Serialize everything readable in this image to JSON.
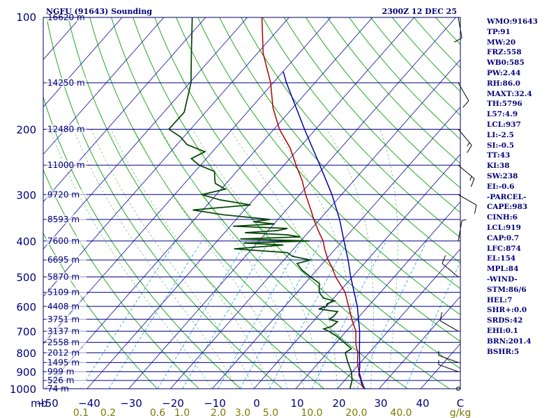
{
  "header": {
    "station": "NGFU (91643) Sounding",
    "time": "2300Z 12 DEC 25"
  },
  "indices": [
    "WMO:91643",
    "TP:91",
    "MW:20",
    "FRZ:558",
    "WB0:585",
    "PW:2.44",
    "RH:86.0",
    "MAXT:32.4",
    "TH:5796",
    "L57:4.9",
    "LCL:937",
    "LI:-2.5",
    "SI:-0.5",
    "TT:43",
    "KI:38",
    "SW:238",
    "EI:-0.6",
    "-PARCEL-",
    "CAPE:983",
    "CINH:6",
    "LCL:919",
    "CAP:0.7",
    "LFC:874",
    "EL:154",
    "MPL:84",
    "-WIND-",
    "STM:86/6",
    "HEL:7",
    "SHR+:0.0",
    "SRDS:42",
    "EHI:0.1",
    "BRN:201.4",
    "BSHR:5"
  ],
  "chart_data": {
    "type": "line",
    "chart_kind": "skew-T log-P sounding",
    "pressure_unit": "mb",
    "temperature_unit": "C",
    "mixing_ratio_unit": "g/kg",
    "pressure_range": [
      1000,
      100
    ],
    "temperature_range": [
      -50,
      50
    ],
    "pressure_labels": [
      {
        "p": 100,
        "label": "100"
      },
      {
        "p": 200,
        "label": "200"
      },
      {
        "p": 300,
        "label": "300"
      },
      {
        "p": 400,
        "label": "400"
      },
      {
        "p": 500,
        "label": "500"
      },
      {
        "p": 600,
        "label": "600"
      },
      {
        "p": 700,
        "label": "700"
      },
      {
        "p": 800,
        "label": "800"
      },
      {
        "p": 900,
        "label": "900"
      },
      {
        "p": 1000,
        "label": "1000"
      }
    ],
    "height_levels": [
      {
        "p": 100,
        "label": "16620 m"
      },
      {
        "p": 150,
        "label": "14250 m"
      },
      {
        "p": 200,
        "label": "12480 m"
      },
      {
        "p": 250,
        "label": "11000 m"
      },
      {
        "p": 300,
        "label": "9720 m"
      },
      {
        "p": 350,
        "label": "8593 m"
      },
      {
        "p": 400,
        "label": "7600 m"
      },
      {
        "p": 450,
        "label": "6695 m"
      },
      {
        "p": 500,
        "label": "5870 m"
      },
      {
        "p": 550,
        "label": "5109 m"
      },
      {
        "p": 600,
        "label": "4408 m"
      },
      {
        "p": 650,
        "label": "3751 m"
      },
      {
        "p": 700,
        "label": "3137 m"
      },
      {
        "p": 750,
        "label": "2558 m"
      },
      {
        "p": 800,
        "label": "2012 m"
      },
      {
        "p": 850,
        "label": "1495 m"
      },
      {
        "p": 900,
        "label": "999 m"
      },
      {
        "p": 950,
        "label": "526 m"
      },
      {
        "p": 1000,
        "label": "74 m"
      }
    ],
    "x_labels": [
      "mb",
      "−50",
      "−40",
      "−30",
      "−20",
      "−10",
      "0",
      "10",
      "20",
      "30",
      "40",
      "C"
    ],
    "mixing_ratio_labels": [
      {
        "w": 0.1,
        "label": "0.1"
      },
      {
        "w": 0.2,
        "label": "0.2"
      },
      {
        "w": 0.6,
        "label": "0.6"
      },
      {
        "w": 1.0,
        "label": "1.0"
      },
      {
        "w": 2.0,
        "label": "2.0"
      },
      {
        "w": 3.0,
        "label": "3.0"
      },
      {
        "w": 5.0,
        "label": "5.0"
      },
      {
        "w": 10.0,
        "label": "10.0"
      },
      {
        "w": 20.0,
        "label": "20.0"
      },
      {
        "w": 40.0,
        "label": "40.0"
      },
      {
        "w": 0,
        "label": "g/kg"
      }
    ],
    "series": [
      {
        "color": "#b00000",
        "points": [
          [
            1000,
            26.5
          ],
          [
            980,
            25.2
          ],
          [
            950,
            23.9
          ],
          [
            925,
            22.9
          ],
          [
            900,
            21.6
          ],
          [
            850,
            19.3
          ],
          [
            800,
            17.3
          ],
          [
            760,
            15.1
          ],
          [
            700,
            12.3
          ],
          [
            650,
            8.8
          ],
          [
            600,
            5.3
          ],
          [
            550,
            1.5
          ],
          [
            500,
            -4.0
          ],
          [
            470,
            -7.0
          ],
          [
            450,
            -9.4
          ],
          [
            420,
            -12.6
          ],
          [
            400,
            -14.6
          ],
          [
            380,
            -17.3
          ],
          [
            350,
            -21.4
          ],
          [
            330,
            -24.1
          ],
          [
            300,
            -28.6
          ],
          [
            275,
            -32.4
          ],
          [
            250,
            -37.1
          ],
          [
            225,
            -42.1
          ],
          [
            200,
            -48.7
          ],
          [
            175,
            -54.8
          ],
          [
            150,
            -60.6
          ],
          [
            125,
            -68.6
          ],
          [
            100,
            -76.5
          ]
        ]
      },
      {
        "color": "#004400",
        "points": [
          [
            1000,
            23.0
          ],
          [
            950,
            21.8
          ],
          [
            900,
            19.8
          ],
          [
            850,
            17.0
          ],
          [
            800,
            14.3
          ],
          [
            780,
            14.9
          ],
          [
            750,
            11.8
          ],
          [
            720,
            8.5
          ],
          [
            700,
            5.8
          ],
          [
            690,
            4.1
          ],
          [
            680,
            5.5
          ],
          [
            660,
            5.9
          ],
          [
            650,
            3.3
          ],
          [
            640,
            3.8
          ],
          [
            620,
            3.8
          ],
          [
            610,
            -1.3
          ],
          [
            600,
            -0.1
          ],
          [
            590,
            -0.4
          ],
          [
            580,
            0.8
          ],
          [
            570,
            -2.5
          ],
          [
            550,
            -4.7
          ],
          [
            520,
            -6.6
          ],
          [
            500,
            -10.0
          ],
          [
            480,
            -13.4
          ],
          [
            460,
            -16.1
          ],
          [
            450,
            -13.6
          ],
          [
            440,
            -18.7
          ],
          [
            430,
            -20.7
          ],
          [
            420,
            -34.3
          ],
          [
            410,
            -23.3
          ],
          [
            405,
            -33.3
          ],
          [
            400,
            -17.9
          ],
          [
            395,
            -34.9
          ],
          [
            390,
            -21.0
          ],
          [
            385,
            -24.4
          ],
          [
            380,
            -35.1
          ],
          [
            375,
            -27.8
          ],
          [
            370,
            -25.8
          ],
          [
            365,
            -39.3
          ],
          [
            360,
            -29.8
          ],
          [
            355,
            -35.4
          ],
          [
            350,
            -31.9
          ],
          [
            340,
            -44.0
          ],
          [
            330,
            -52.4
          ],
          [
            320,
            -39.6
          ],
          [
            310,
            -48.0
          ],
          [
            300,
            -53.5
          ],
          [
            290,
            -49.0
          ],
          [
            280,
            -52.6
          ],
          [
            270,
            -54.0
          ],
          [
            260,
            -55.3
          ],
          [
            250,
            -60.3
          ],
          [
            240,
            -63.6
          ],
          [
            230,
            -61.8
          ],
          [
            220,
            -67.6
          ],
          [
            210,
            -70.7
          ],
          [
            200,
            -75.2
          ],
          [
            180,
            -75.1
          ],
          [
            150,
            -79.7
          ],
          [
            125,
            -85.8
          ],
          [
            100,
            -93.2
          ]
        ]
      },
      {
        "color": "#0000a8",
        "points": [
          [
            1000,
            26.5
          ],
          [
            950,
            24.0
          ],
          [
            919,
            22.3
          ],
          [
            874,
            20.8
          ],
          [
            800,
            17.7
          ],
          [
            700,
            13.2
          ],
          [
            600,
            7.4
          ],
          [
            500,
            -0.4
          ],
          [
            450,
            -4.6
          ],
          [
            400,
            -9.6
          ],
          [
            350,
            -15.2
          ],
          [
            300,
            -22.3
          ],
          [
            250,
            -31.4
          ],
          [
            200,
            -42.7
          ],
          [
            150,
            -56.8
          ],
          [
            140,
            -59.9
          ]
        ]
      }
    ],
    "wind_barbs": [
      {
        "p": 1000,
        "dir": 0,
        "spd": 0
      },
      {
        "p": 900,
        "dir": 290,
        "spd": 5
      },
      {
        "p": 850,
        "dir": 290,
        "spd": 5
      },
      {
        "p": 700,
        "dir": 300,
        "spd": 10
      },
      {
        "p": 500,
        "dir": 310,
        "spd": 10
      },
      {
        "p": 400,
        "dir": 10,
        "spd": 5
      },
      {
        "p": 300,
        "dir": 120,
        "spd": 10
      },
      {
        "p": 250,
        "dir": 130,
        "spd": 15
      },
      {
        "p": 200,
        "dir": 140,
        "spd": 15
      },
      {
        "p": 150,
        "dir": 150,
        "spd": 10
      },
      {
        "p": 100,
        "dir": 170,
        "spd": 10
      }
    ]
  }
}
